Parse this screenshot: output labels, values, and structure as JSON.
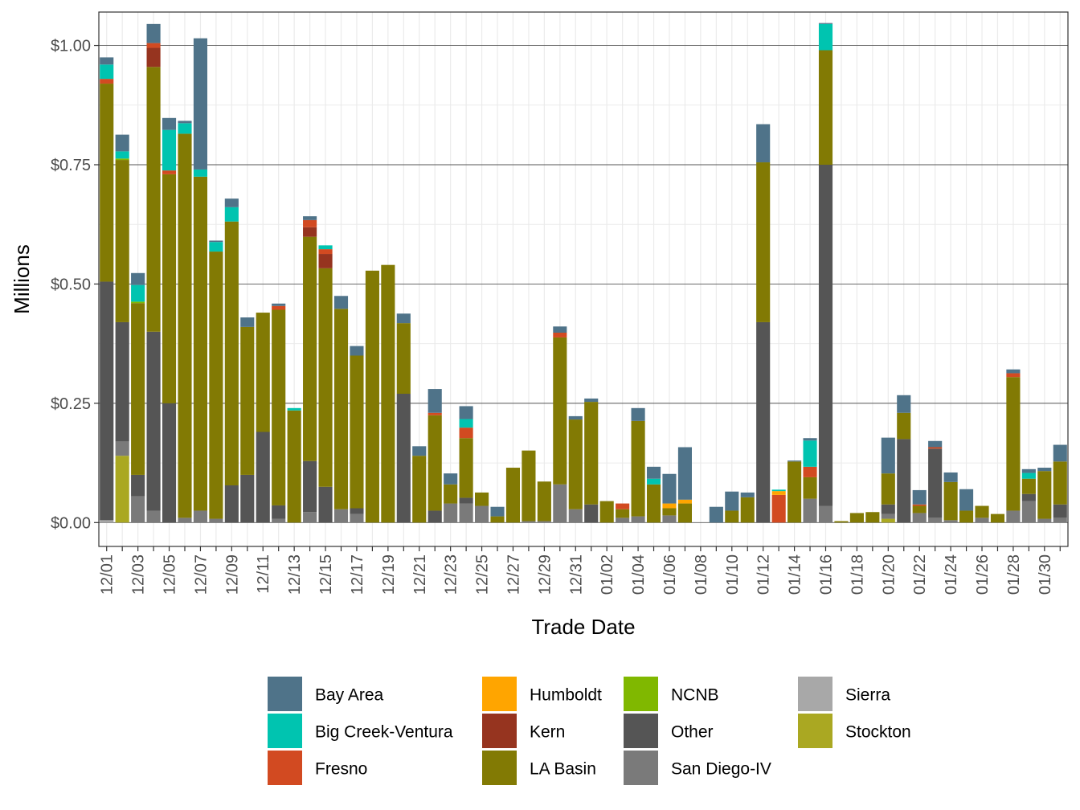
{
  "chart_data": {
    "type": "bar",
    "stacked": true,
    "title": "",
    "xlabel": "Trade Date",
    "ylabel": "Millions",
    "ylim": [
      -0.05,
      1.07
    ],
    "y_ticks": [
      0,
      0.25,
      0.5,
      0.75,
      1.0
    ],
    "y_tick_labels": [
      "$0.00",
      "$0.25",
      "$0.50",
      "$0.75",
      "$1.00"
    ],
    "categories": [
      "12/01",
      "12/02",
      "12/03",
      "12/04",
      "12/05",
      "12/06",
      "12/07",
      "12/08",
      "12/09",
      "12/10",
      "12/11",
      "12/12",
      "12/13",
      "12/14",
      "12/15",
      "12/16",
      "12/17",
      "12/18",
      "12/19",
      "12/20",
      "12/21",
      "12/22",
      "12/23",
      "12/24",
      "12/25",
      "12/26",
      "12/27",
      "12/28",
      "12/29",
      "12/30",
      "12/31",
      "01/01",
      "01/02",
      "01/03",
      "01/04",
      "01/05",
      "01/06",
      "01/07",
      "01/08",
      "01/09",
      "01/10",
      "01/11",
      "01/12",
      "01/13",
      "01/14",
      "01/15",
      "01/16",
      "01/17",
      "01/18",
      "01/19",
      "01/20",
      "01/21",
      "01/22",
      "01/23",
      "01/24",
      "01/25",
      "01/26",
      "01/27",
      "01/28",
      "01/29",
      "01/30",
      "01/31"
    ],
    "x_tick_labels": [
      "12/01",
      "12/03",
      "12/05",
      "12/07",
      "12/09",
      "12/11",
      "12/13",
      "12/15",
      "12/17",
      "12/19",
      "12/21",
      "12/23",
      "12/25",
      "12/27",
      "12/29",
      "12/31",
      "01/02",
      "01/04",
      "01/06",
      "01/08",
      "01/10",
      "01/12",
      "01/14",
      "01/16",
      "01/18",
      "01/20",
      "01/22",
      "01/24",
      "01/26",
      "01/28",
      "01/30"
    ],
    "legend_position": "bottom",
    "series": [
      {
        "name": "Sierra",
        "color": "#a8a8a8",
        "values": [
          0.005,
          0,
          0,
          0,
          0,
          0,
          0,
          0,
          0,
          0,
          0,
          0,
          0,
          0,
          0,
          0,
          0,
          0,
          0,
          0,
          0,
          0,
          0,
          0,
          0,
          0,
          0,
          0,
          0,
          0,
          0,
          0,
          0,
          0,
          0,
          0,
          0,
          0,
          0,
          0,
          0,
          0,
          0,
          0,
          0,
          0,
          0,
          0,
          0,
          0,
          0,
          0,
          0,
          0,
          0,
          0,
          0,
          0,
          0,
          0,
          0,
          0
        ]
      },
      {
        "name": "Stockton",
        "color": "#aaa822",
        "values": [
          0,
          0.14,
          0,
          0,
          0,
          0,
          0,
          0,
          0,
          0,
          0,
          0,
          0,
          0,
          0,
          0,
          0,
          0,
          0,
          0,
          0,
          0,
          0,
          0,
          0,
          0,
          0,
          0,
          0,
          0,
          0,
          0,
          0,
          0,
          0,
          0,
          0,
          0,
          0,
          0,
          0,
          0,
          0,
          0,
          0,
          0,
          0,
          0,
          0,
          0,
          0.008,
          0,
          0,
          0,
          0,
          0,
          0,
          0,
          0,
          0,
          0,
          0
        ]
      },
      {
        "name": "San Diego-IV",
        "color": "#7a7a7a",
        "values": [
          0,
          0.03,
          0.055,
          0.025,
          0,
          0.01,
          0.025,
          0.008,
          0,
          0,
          0,
          0.008,
          0,
          0.022,
          0,
          0.028,
          0.018,
          0,
          0,
          0,
          0,
          0,
          0.04,
          0.04,
          0.035,
          0,
          0,
          0.003,
          0.003,
          0.08,
          0.028,
          0,
          0,
          0.01,
          0.013,
          0,
          0.015,
          0,
          0,
          0,
          0,
          0,
          0,
          0,
          0,
          0.05,
          0.035,
          0,
          0,
          0,
          0.01,
          0,
          0.02,
          0.01,
          0.005,
          0,
          0.01,
          0,
          0.025,
          0.045,
          0.008,
          0.01
        ]
      },
      {
        "name": "Other",
        "color": "#555555",
        "values": [
          0.5,
          0.25,
          0.045,
          0.375,
          0.25,
          0,
          0,
          0,
          0.078,
          0.1,
          0.19,
          0.028,
          0,
          0.107,
          0.075,
          0,
          0.012,
          0,
          0,
          0.27,
          0,
          0.025,
          0,
          0.012,
          0,
          0,
          0,
          0,
          0,
          0,
          0,
          0.038,
          0,
          0,
          0,
          0,
          0,
          0,
          0,
          0,
          0,
          0,
          0.42,
          0,
          0,
          0,
          0.715,
          0,
          0,
          0,
          0.02,
          0.175,
          0,
          0.145,
          0,
          0,
          0,
          0,
          0,
          0.015,
          0,
          0.028
        ]
      },
      {
        "name": "LA Basin",
        "color": "#827a04",
        "values": [
          0.415,
          0.34,
          0.36,
          0.555,
          0.48,
          0.805,
          0.7,
          0.56,
          0.553,
          0.31,
          0.25,
          0.41,
          0.235,
          0.47,
          0.458,
          0.42,
          0.32,
          0.528,
          0.54,
          0.148,
          0.14,
          0.2,
          0.04,
          0.125,
          0.028,
          0.013,
          0.115,
          0.148,
          0.083,
          0.308,
          0.188,
          0.215,
          0.045,
          0.018,
          0.2,
          0.08,
          0.015,
          0.04,
          0,
          0,
          0.025,
          0.053,
          0.335,
          0,
          0.128,
          0.045,
          0.24,
          0.003,
          0.02,
          0.022,
          0.065,
          0.055,
          0.015,
          0,
          0.08,
          0.025,
          0.025,
          0.018,
          0.28,
          0.032,
          0.1,
          0.09
        ]
      },
      {
        "name": "Kern",
        "color": "#96341f",
        "values": [
          0,
          0,
          0,
          0.04,
          0,
          0,
          0,
          0,
          0,
          0,
          0,
          0,
          0,
          0.02,
          0.03,
          0,
          0,
          0,
          0,
          0,
          0,
          0,
          0,
          0,
          0,
          0,
          0,
          0,
          0,
          0,
          0,
          0,
          0,
          0,
          0,
          0,
          0,
          0,
          0,
          0,
          0,
          0,
          0,
          0,
          0,
          0,
          0,
          0,
          0,
          0,
          0,
          0,
          0,
          0,
          0,
          0,
          0,
          0,
          0,
          0,
          0,
          0
        ]
      },
      {
        "name": "Fresno",
        "color": "#d24a21",
        "values": [
          0.01,
          0,
          0,
          0.01,
          0.008,
          0,
          0,
          0,
          0,
          0,
          0,
          0.008,
          0,
          0.015,
          0.01,
          0,
          0,
          0,
          0,
          0,
          0,
          0.005,
          0,
          0.022,
          0,
          0,
          0,
          0,
          0,
          0.01,
          0,
          0,
          0,
          0.012,
          0,
          0,
          0,
          0,
          0,
          0,
          0,
          0,
          0,
          0.058,
          0,
          0.022,
          0,
          0,
          0,
          0,
          0,
          0,
          0.003,
          0.003,
          0,
          0,
          0,
          0,
          0.008,
          0,
          0,
          0
        ]
      },
      {
        "name": "Humboldt",
        "color": "#ffa500",
        "values": [
          0,
          0,
          0,
          0,
          0,
          0,
          0,
          0,
          0,
          0,
          0,
          0,
          0,
          0,
          0,
          0,
          0,
          0,
          0,
          0,
          0,
          0,
          0,
          0,
          0,
          0,
          0,
          0,
          0,
          0,
          0,
          0,
          0,
          0,
          0,
          0,
          0.01,
          0.008,
          0,
          0,
          0,
          0,
          0,
          0.008,
          0,
          0,
          0,
          0,
          0,
          0,
          0,
          0,
          0,
          0,
          0,
          0,
          0,
          0,
          0,
          0,
          0,
          0
        ]
      },
      {
        "name": "NCNB",
        "color": "#80b800",
        "values": [
          0,
          0.003,
          0.003,
          0,
          0,
          0,
          0,
          0,
          0,
          0,
          0,
          0,
          0,
          0,
          0,
          0,
          0,
          0,
          0,
          0,
          0,
          0,
          0,
          0,
          0,
          0,
          0,
          0,
          0,
          0,
          0,
          0,
          0,
          0,
          0,
          0,
          0,
          0,
          0,
          0,
          0,
          0,
          0,
          0,
          0,
          0,
          0,
          0,
          0,
          0,
          0,
          0,
          0,
          0,
          0,
          0,
          0,
          0,
          0,
          0,
          0,
          0
        ]
      },
      {
        "name": "Big Creek-Ventura",
        "color": "#00c4b0",
        "values": [
          0.03,
          0.015,
          0.035,
          0,
          0.085,
          0.022,
          0.015,
          0.02,
          0.03,
          0,
          0,
          0,
          0.005,
          0,
          0.008,
          0,
          0,
          0,
          0,
          0,
          0,
          0,
          0,
          0.018,
          0,
          0,
          0,
          0,
          0,
          0,
          0,
          0,
          0,
          0,
          0,
          0.012,
          0,
          0,
          0,
          0,
          0,
          0,
          0,
          0.003,
          0,
          0.055,
          0.055,
          0,
          0,
          0,
          0,
          0,
          0,
          0,
          0,
          0,
          0,
          0,
          0,
          0.012,
          0,
          0
        ]
      },
      {
        "name": "Bay Area",
        "color": "#4f7389",
        "values": [
          0.015,
          0.035,
          0.025,
          0.04,
          0.025,
          0.005,
          0.275,
          0.003,
          0.018,
          0.02,
          0,
          0.005,
          0,
          0.008,
          0,
          0.027,
          0.02,
          0,
          0,
          0.02,
          0.02,
          0.05,
          0.023,
          0.027,
          0,
          0.02,
          0,
          0,
          0,
          0.013,
          0.007,
          0.007,
          0,
          0,
          0.027,
          0.025,
          0.062,
          0.11,
          0,
          0.033,
          0.04,
          0.01,
          0.08,
          0,
          0.002,
          0.005,
          0.002,
          0,
          0,
          0,
          0.075,
          0.037,
          0.03,
          0.013,
          0.02,
          0.045,
          0,
          0,
          0.008,
          0.008,
          0.007,
          0.035
        ]
      }
    ],
    "legend_order": [
      "Bay Area",
      "Big Creek-Ventura",
      "Fresno",
      "Humboldt",
      "Kern",
      "LA Basin",
      "NCNB",
      "Other",
      "San Diego-IV",
      "Sierra",
      "Stockton"
    ]
  }
}
